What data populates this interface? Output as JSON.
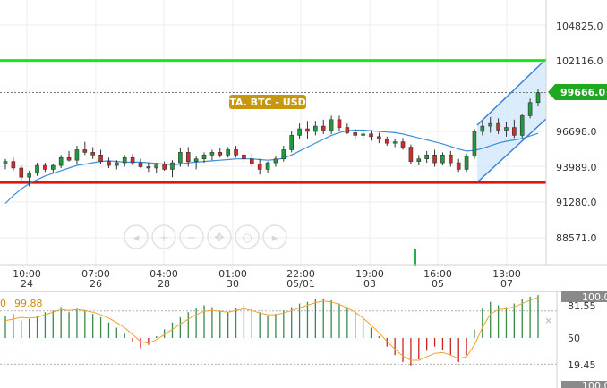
{
  "price_axis": {
    "labels": [
      "104825.0",
      "102116.0",
      "96698.0",
      "93989.0",
      "91280.0",
      "88571.0"
    ],
    "current_price": "99666.0",
    "current_price_color": "#21a821"
  },
  "time_axis": [
    {
      "time": "10:00",
      "date": "24"
    },
    {
      "time": "07:00",
      "date": "26"
    },
    {
      "time": "04:00",
      "date": "28"
    },
    {
      "time": "01:00",
      "date": "30"
    },
    {
      "time": "22:00",
      "date": "05/01"
    },
    {
      "time": "19:00",
      "date": "03"
    },
    {
      "time": "16:00",
      "date": "05"
    },
    {
      "time": "13:00",
      "date": "07"
    }
  ],
  "badge": {
    "label": "TA. BTC - USD",
    "color": "#c8980c"
  },
  "levels": {
    "resistance": 102116,
    "support": 92800,
    "resistance_color": "#19e619",
    "support_color": "#e01414"
  },
  "toolbar_icons": [
    "scroll-left-icon",
    "zoom-in-icon",
    "zoom-out-icon",
    "pan-icon",
    "zoom-reset-icon",
    "scroll-right-icon"
  ],
  "indicator": {
    "value_prefix": "0",
    "value": "99.88",
    "value_color": "#d08b00",
    "axis_labels": [
      "100.00",
      "81.55",
      "50",
      "19.45",
      "100.00"
    ],
    "close_glyph": "×"
  },
  "colors": {
    "up": "#1f9a3f",
    "down": "#d22b2b",
    "ma": "#3a8fd9",
    "channel": "#3b7fd6",
    "osc_line": "#f0a030"
  },
  "chart_data": {
    "type": "candlestick",
    "ylim": [
      87000,
      106000
    ],
    "candles": [
      [
        94200,
        94600,
        93800,
        94400
      ],
      [
        94400,
        94700,
        93700,
        93900
      ],
      [
        93900,
        94100,
        92800,
        93200
      ],
      [
        93200,
        93700,
        92500,
        93500
      ],
      [
        93500,
        94300,
        93300,
        94100
      ],
      [
        94100,
        94300,
        93600,
        93800
      ],
      [
        93800,
        94200,
        93500,
        94100
      ],
      [
        94100,
        94900,
        93900,
        94700
      ],
      [
        94700,
        95200,
        94400,
        94500
      ],
      [
        94500,
        95600,
        94200,
        95300
      ],
      [
        95300,
        95900,
        94900,
        95100
      ],
      [
        95100,
        95500,
        94600,
        94900
      ],
      [
        94900,
        95300,
        94200,
        94400
      ],
      [
        94400,
        94700,
        93900,
        94100
      ],
      [
        94100,
        94500,
        93800,
        94300
      ],
      [
        94300,
        94900,
        94000,
        94700
      ],
      [
        94700,
        95000,
        94100,
        94300
      ],
      [
        94300,
        94600,
        93900,
        94000
      ],
      [
        94000,
        94300,
        93600,
        93900
      ],
      [
        93900,
        94300,
        93500,
        94200
      ],
      [
        94200,
        94400,
        93700,
        93800
      ],
      [
        93800,
        94500,
        93200,
        94300
      ],
      [
        94300,
        95400,
        94000,
        95100
      ],
      [
        95100,
        95500,
        94000,
        94400
      ],
      [
        94400,
        94800,
        93800,
        94600
      ],
      [
        94600,
        95100,
        94300,
        94900
      ],
      [
        94900,
        95300,
        94500,
        95100
      ],
      [
        95100,
        95400,
        94700,
        94900
      ],
      [
        94900,
        95500,
        94700,
        95300
      ],
      [
        95300,
        95600,
        94700,
        94900
      ],
      [
        94900,
        95200,
        94300,
        94600
      ],
      [
        94600,
        95000,
        94000,
        94200
      ],
      [
        94200,
        94600,
        93400,
        93800
      ],
      [
        93800,
        94400,
        93500,
        94300
      ],
      [
        94300,
        94800,
        94000,
        94600
      ],
      [
        94600,
        95600,
        94400,
        95300
      ],
      [
        95300,
        96700,
        95100,
        96400
      ],
      [
        96400,
        97300,
        96100,
        96900
      ],
      [
        96900,
        97500,
        96100,
        96700
      ],
      [
        96700,
        97500,
        96400,
        97100
      ],
      [
        97100,
        97600,
        96500,
        96800
      ],
      [
        96800,
        97900,
        96500,
        97600
      ],
      [
        97600,
        97900,
        96700,
        97000
      ],
      [
        97000,
        97300,
        96500,
        96600
      ],
      [
        96600,
        96900,
        96100,
        96400
      ],
      [
        96400,
        96700,
        96100,
        96500
      ],
      [
        96500,
        96800,
        96000,
        96300
      ],
      [
        96300,
        96600,
        95800,
        96100
      ],
      [
        96100,
        96300,
        95600,
        95800
      ],
      [
        95800,
        96100,
        95500,
        95900
      ],
      [
        95900,
        96200,
        95300,
        95500
      ],
      [
        95500,
        95700,
        94200,
        94400
      ],
      [
        94400,
        94900,
        94100,
        94600
      ],
      [
        94600,
        95200,
        94300,
        94900
      ],
      [
        94900,
        95300,
        94000,
        94300
      ],
      [
        94300,
        95100,
        94100,
        94900
      ],
      [
        94900,
        95200,
        94000,
        94300
      ],
      [
        94300,
        94600,
        93600,
        93800
      ],
      [
        93800,
        95000,
        93600,
        94800
      ],
      [
        94800,
        96900,
        94600,
        96700
      ],
      [
        96700,
        97500,
        96400,
        97100
      ],
      [
        97100,
        97800,
        96600,
        97300
      ],
      [
        97300,
        97700,
        96500,
        96800
      ],
      [
        96800,
        97400,
        96300,
        97000
      ],
      [
        97000,
        97600,
        96200,
        96400
      ],
      [
        96400,
        98000,
        96200,
        97900
      ],
      [
        97900,
        99200,
        97700,
        98900
      ],
      [
        98900,
        99900,
        98600,
        99666
      ]
    ],
    "moving_average": [
      91200,
      91800,
      92300,
      92700,
      93000,
      93300,
      93500,
      93700,
      93900,
      94100,
      94200,
      94300,
      94400,
      94450,
      94400,
      94350,
      94350,
      94350,
      94300,
      94250,
      94200,
      94150,
      94200,
      94300,
      94350,
      94400,
      94450,
      94500,
      94550,
      94600,
      94600,
      94600,
      94550,
      94500,
      94550,
      94650,
      94900,
      95200,
      95500,
      95800,
      96100,
      96400,
      96600,
      96750,
      96800,
      96800,
      96750,
      96700,
      96650,
      96600,
      96500,
      96350,
      96200,
      96050,
      95900,
      95750,
      95550,
      95350,
      95200,
      95250,
      95400,
      95600,
      95800,
      95950,
      96050,
      96150,
      96350,
      96550
    ],
    "indicator_bars": [
      75,
      78,
      70,
      72,
      76,
      80,
      82,
      86,
      80,
      84,
      82,
      78,
      74,
      68,
      62,
      55,
      45,
      38,
      42,
      52,
      60,
      68,
      74,
      80,
      85,
      88,
      86,
      82,
      80,
      85,
      88,
      84,
      80,
      76,
      78,
      82,
      86,
      90,
      92,
      95,
      96,
      94,
      90,
      86,
      80,
      72,
      62,
      52,
      40,
      30,
      22,
      18,
      25,
      35,
      40,
      36,
      30,
      22,
      30,
      60,
      85,
      92,
      88,
      86,
      90,
      95,
      98,
      99.88
    ],
    "indicator_line": [
      70,
      72,
      74,
      73,
      74,
      77,
      80,
      83,
      82,
      83,
      82,
      80,
      77,
      73,
      68,
      62,
      54,
      46,
      44,
      48,
      54,
      60,
      66,
      72,
      77,
      81,
      82,
      81,
      80,
      82,
      84,
      82,
      79,
      77,
      77,
      79,
      82,
      85,
      88,
      91,
      93,
      92,
      89,
      85,
      80,
      73,
      65,
      56,
      46,
      37,
      29,
      24,
      24,
      28,
      32,
      33,
      30,
      26,
      28,
      42,
      62,
      78,
      83,
      84,
      86,
      90,
      94,
      97
    ]
  }
}
